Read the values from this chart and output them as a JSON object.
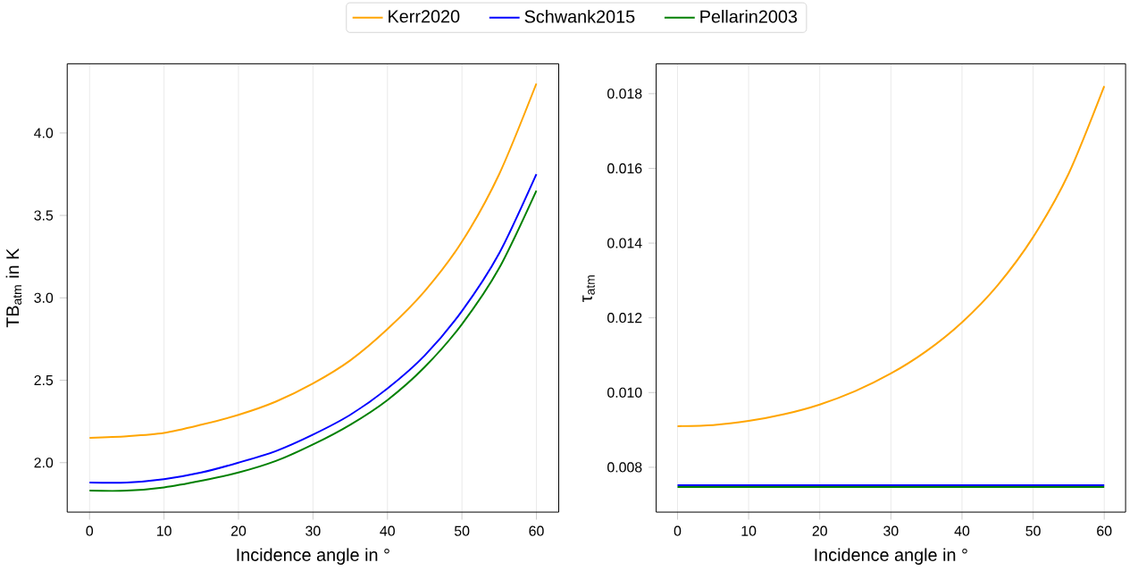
{
  "chart_data": [
    {
      "type": "line",
      "xlabel": "Incidence angle in °",
      "ylabel": "TB$_{atm}$ in K",
      "x": [
        0,
        5,
        10,
        15,
        20,
        25,
        30,
        35,
        40,
        45,
        50,
        55,
        60
      ],
      "series": [
        {
          "name": "Kerr2020",
          "color": "#ffa500",
          "values": [
            2.15,
            2.16,
            2.18,
            2.23,
            2.29,
            2.37,
            2.48,
            2.62,
            2.81,
            3.04,
            3.34,
            3.75,
            4.3
          ]
        },
        {
          "name": "Schwank2015",
          "color": "#0000ff",
          "values": [
            1.88,
            1.88,
            1.9,
            1.94,
            2.0,
            2.07,
            2.17,
            2.29,
            2.45,
            2.65,
            2.92,
            3.27,
            3.75
          ]
        },
        {
          "name": "Pellarin2003",
          "color": "#008000",
          "values": [
            1.83,
            1.83,
            1.85,
            1.89,
            1.94,
            2.01,
            2.11,
            2.23,
            2.38,
            2.58,
            2.84,
            3.18,
            3.65
          ]
        }
      ],
      "xlim": [
        -3,
        63
      ],
      "xticks": [
        0,
        10,
        20,
        30,
        40,
        50,
        60
      ],
      "ylim": [
        1.7,
        4.42
      ],
      "yticks": [
        {
          "value": 2.0,
          "label": "2.0"
        },
        2.5,
        {
          "value": 3.0,
          "label": "3.0"
        },
        3.5,
        {
          "value": 4.0,
          "label": "4.0"
        }
      ],
      "grid": "x",
      "legend": "top",
      "marker": "none",
      "line_style": "solid"
    },
    {
      "type": "line",
      "xlabel": "Incidence angle in °",
      "ylabel": "τ$_{atm}$",
      "x": [
        0,
        5,
        10,
        15,
        20,
        25,
        30,
        35,
        40,
        45,
        50,
        55,
        60
      ],
      "series": [
        {
          "color": "#ffa500",
          "values": [
            0.0091,
            0.00913,
            0.00924,
            0.00942,
            0.00968,
            0.01004,
            0.01051,
            0.01111,
            0.01188,
            0.01287,
            0.01416,
            0.01586,
            0.0182
          ]
        },
        {
          "color": "#0000ff",
          "values": [
            0.00752,
            0.00752,
            0.00752,
            0.00752,
            0.00752,
            0.00752,
            0.00752,
            0.00752,
            0.00752,
            0.00752,
            0.00752,
            0.00752,
            0.00752
          ]
        },
        {
          "color": "#008000",
          "values": [
            0.00747,
            0.00747,
            0.00747,
            0.00747,
            0.00747,
            0.00747,
            0.00747,
            0.00747,
            0.00747,
            0.00747,
            0.00747,
            0.00747,
            0.00747
          ]
        }
      ],
      "xlim": [
        -3,
        63
      ],
      "xticks": [
        0,
        10,
        20,
        30,
        40,
        50,
        60
      ],
      "ylim": [
        0.0068,
        0.0188
      ],
      "yticks": [
        0.008,
        {
          "value": 0.01,
          "label": "0.010"
        },
        0.012,
        0.014,
        0.016,
        0.018
      ],
      "grid": "x",
      "marker": "none",
      "line_style": "solid"
    }
  ]
}
